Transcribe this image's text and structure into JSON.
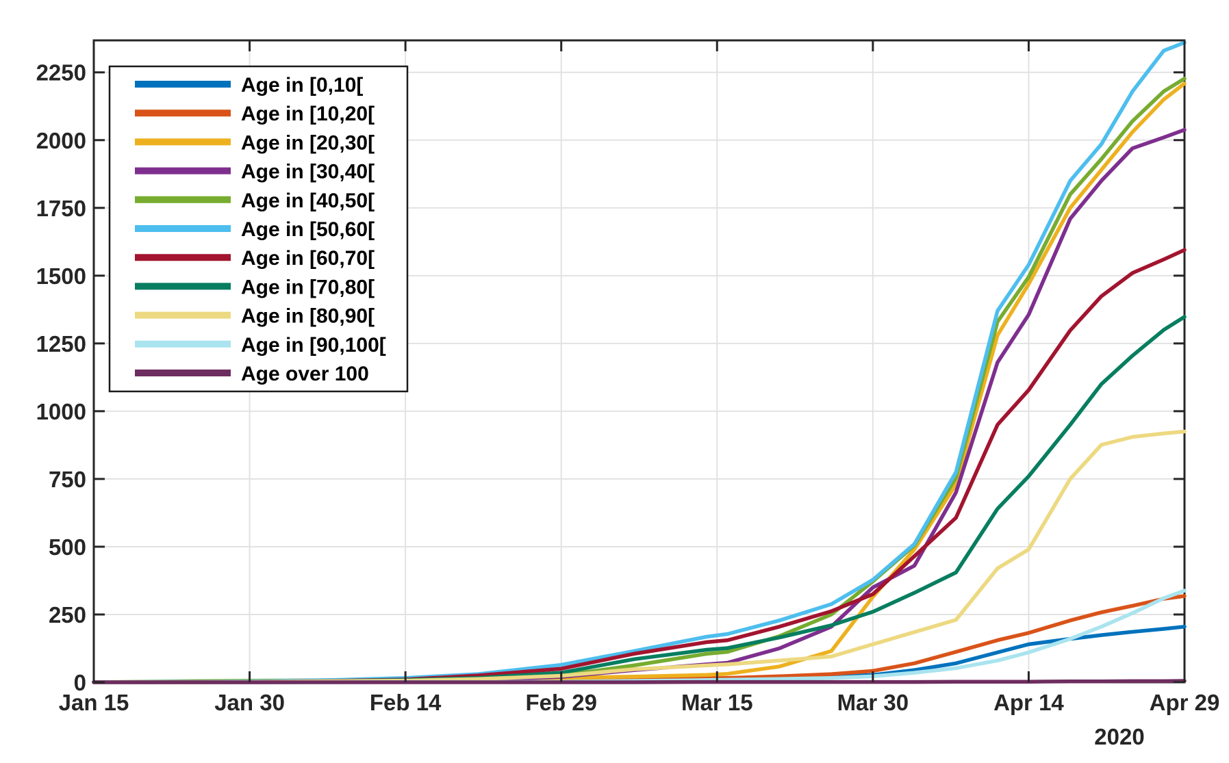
{
  "figure": {
    "background": "#ffffff",
    "axis_color": "#262626",
    "grid_color": "#e2e2e2",
    "tick_label_color": "#262626"
  },
  "chart_data": {
    "type": "line",
    "title": "",
    "xlabel": "",
    "ylabel": "",
    "year_label": "2020",
    "grid": true,
    "legend_position": "top-left",
    "xlim_days": [
      0,
      105
    ],
    "ylim": [
      0,
      2368
    ],
    "x_tick_days": [
      0,
      15,
      30,
      45,
      60,
      75,
      90,
      105
    ],
    "x_tick_labels": [
      "Jan 15",
      "Jan 30",
      "Feb 14",
      "Feb 29",
      "Mar 15",
      "Mar 30",
      "Apr 14",
      "Apr 29"
    ],
    "y_ticks": [
      0,
      250,
      500,
      750,
      1000,
      1250,
      1500,
      1750,
      2000,
      2250
    ],
    "sample_days": [
      0,
      10,
      16,
      23,
      30,
      37,
      45,
      52,
      59,
      61,
      66,
      71,
      75,
      79,
      83,
      87,
      90,
      94,
      97,
      100,
      103,
      105
    ],
    "series": [
      {
        "name": "Age in [0,10[",
        "color": "#0072BD",
        "values": [
          0,
          0,
          0,
          1,
          2,
          3,
          6,
          9,
          13,
          14,
          17,
          21,
          27,
          45,
          70,
          110,
          140,
          160,
          174,
          186,
          197,
          205
        ]
      },
      {
        "name": "Age in [10,20[",
        "color": "#D95319",
        "values": [
          0,
          0,
          0,
          1,
          2,
          3,
          6,
          10,
          15,
          16,
          22,
          30,
          42,
          70,
          112,
          155,
          182,
          228,
          258,
          282,
          308,
          318
        ]
      },
      {
        "name": "Age in [20,30[",
        "color": "#EDB120",
        "values": [
          0,
          0,
          1,
          1,
          3,
          6,
          16,
          21,
          27,
          31,
          58,
          115,
          315,
          490,
          730,
          1280,
          1469,
          1750,
          1890,
          2030,
          2150,
          2209
        ]
      },
      {
        "name": "Age in [30,40[",
        "color": "#7E2F8E",
        "values": [
          0,
          1,
          1,
          2,
          4,
          8,
          20,
          45,
          66,
          72,
          125,
          205,
          350,
          430,
          700,
          1180,
          1356,
          1710,
          1850,
          1970,
          2010,
          2038
        ]
      },
      {
        "name": "Age in [40,50[",
        "color": "#77AC30",
        "values": [
          0,
          4,
          6,
          7,
          8,
          14,
          25,
          62,
          105,
          112,
          170,
          250,
          372,
          505,
          755,
          1330,
          1495,
          1800,
          1930,
          2070,
          2180,
          2227
        ]
      },
      {
        "name": "Age in [50,60[",
        "color": "#4DBEEE",
        "values": [
          0,
          2,
          4,
          8,
          16,
          30,
          64,
          115,
          168,
          178,
          228,
          288,
          378,
          510,
          775,
          1370,
          1540,
          1850,
          1985,
          2180,
          2330,
          2360
        ]
      },
      {
        "name": "Age in [60,70[",
        "color": "#A2142F",
        "values": [
          0,
          1,
          2,
          5,
          10,
          25,
          50,
          105,
          148,
          155,
          205,
          262,
          325,
          465,
          607,
          950,
          1078,
          1298,
          1424,
          1510,
          1560,
          1595
        ]
      },
      {
        "name": "Age in [70,80[",
        "color": "#077E60",
        "values": [
          0,
          1,
          2,
          4,
          8,
          16,
          35,
          85,
          120,
          126,
          165,
          210,
          260,
          330,
          405,
          640,
          760,
          950,
          1100,
          1205,
          1300,
          1348
        ]
      },
      {
        "name": "Age in [80,90[",
        "color": "#EDD981",
        "values": [
          0,
          1,
          2,
          4,
          6,
          12,
          24,
          48,
          62,
          66,
          80,
          95,
          140,
          185,
          230,
          420,
          490,
          750,
          876,
          905,
          918,
          925
        ]
      },
      {
        "name": "Age in [90,100[",
        "color": "#A9E4EF",
        "values": [
          0,
          0,
          0,
          0,
          1,
          1,
          2,
          5,
          8,
          9,
          12,
          16,
          22,
          35,
          52,
          80,
          110,
          160,
          205,
          255,
          310,
          338
        ]
      },
      {
        "name": "Age over 100",
        "color": "#6E2D5F",
        "values": [
          0,
          0,
          0,
          0,
          0,
          0,
          0,
          0,
          1,
          1,
          1,
          1,
          1,
          1,
          2,
          2,
          2,
          3,
          3,
          4,
          4,
          5
        ]
      }
    ]
  }
}
